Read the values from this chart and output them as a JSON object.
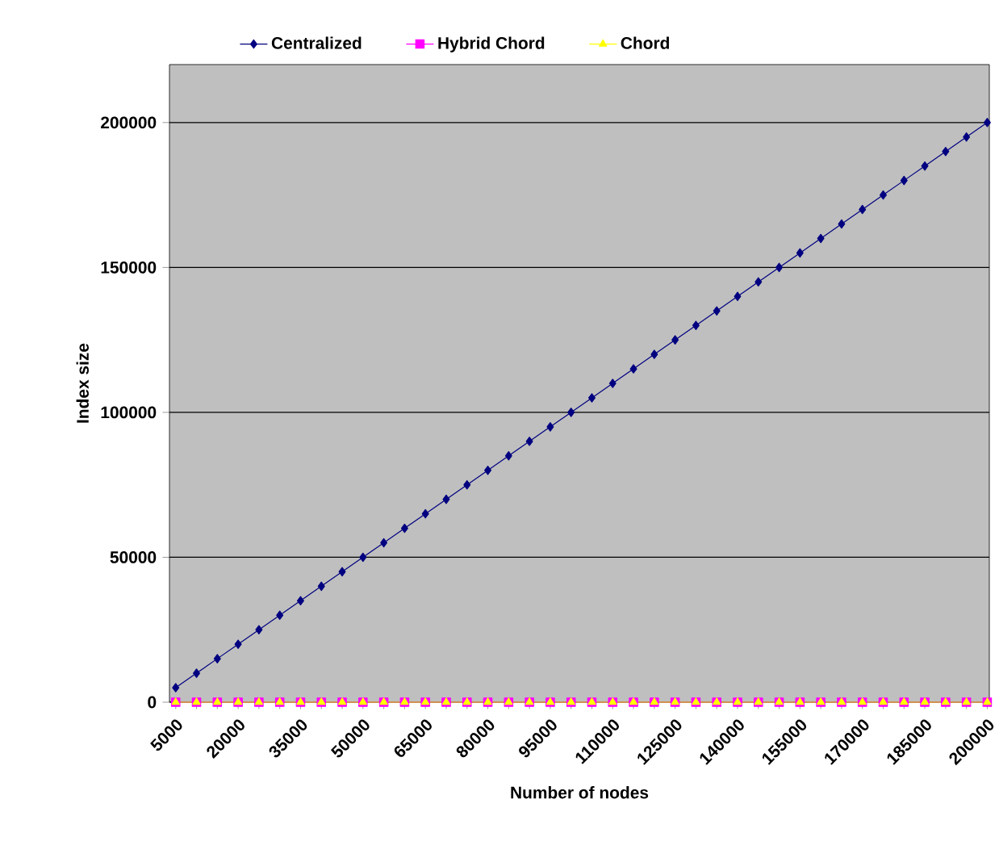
{
  "chart_data": {
    "type": "line",
    "xlabel": "Number of nodes",
    "ylabel": "Index size",
    "categories": [
      "5000",
      null,
      null,
      "20000",
      null,
      null,
      "35000",
      null,
      null,
      "50000",
      null,
      null,
      "65000",
      null,
      null,
      "80000",
      null,
      null,
      "95000",
      null,
      null,
      "110000",
      null,
      null,
      "125000",
      null,
      null,
      "140000",
      null,
      null,
      "155000",
      null,
      null,
      "170000",
      null,
      null,
      "185000",
      null,
      null,
      "200000"
    ],
    "series": [
      {
        "name": "Centralized",
        "color": "#000080",
        "marker": "diamond",
        "values": [
          5000,
          10000,
          15000,
          20000,
          25000,
          30000,
          35000,
          40000,
          45000,
          50000,
          55000,
          60000,
          65000,
          70000,
          75000,
          80000,
          85000,
          90000,
          95000,
          100000,
          105000,
          110000,
          115000,
          120000,
          125000,
          130000,
          135000,
          140000,
          145000,
          150000,
          155000,
          160000,
          165000,
          170000,
          175000,
          180000,
          185000,
          190000,
          195000,
          200000
        ]
      },
      {
        "name": "Hybrid Chord",
        "color": "#ff00ff",
        "marker": "square",
        "values": [
          0,
          0,
          0,
          0,
          0,
          0,
          0,
          0,
          0,
          0,
          0,
          0,
          0,
          0,
          0,
          0,
          0,
          0,
          0,
          0,
          0,
          0,
          0,
          0,
          0,
          0,
          0,
          0,
          0,
          0,
          0,
          0,
          0,
          0,
          0,
          0,
          0,
          0,
          0,
          0
        ]
      },
      {
        "name": "Chord",
        "color": "#ffff00",
        "marker": "triangle",
        "values": [
          0,
          0,
          0,
          0,
          0,
          0,
          0,
          0,
          0,
          0,
          0,
          0,
          0,
          0,
          0,
          0,
          0,
          0,
          0,
          0,
          0,
          0,
          0,
          0,
          0,
          0,
          0,
          0,
          0,
          0,
          0,
          0,
          0,
          0,
          0,
          0,
          0,
          0,
          0,
          0
        ]
      }
    ],
    "ylim": [
      0,
      220000
    ],
    "yticks": [
      0,
      50000,
      100000,
      150000,
      200000
    ],
    "grid": "y",
    "legend": "top"
  }
}
